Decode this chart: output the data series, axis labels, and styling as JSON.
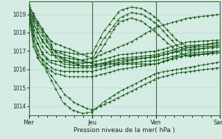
{
  "xlabel": "Pression niveau de la mer( hPa )",
  "bg_color": "#d5ece5",
  "line_color": "#1a5c1a",
  "marker_color": "#1a5c1a",
  "grid_major_color": "#b8d8cc",
  "grid_minor_color": "#cce8de",
  "axis_color": "#336633",
  "ylim": [
    1013.5,
    1019.7
  ],
  "xlim": [
    0,
    168
  ],
  "day_labels": [
    "Mer",
    "Jeu",
    "Ven",
    "Sam"
  ],
  "day_positions": [
    0,
    56,
    112,
    168
  ],
  "series_controls": [
    {
      "x": [
        0,
        8,
        18,
        22,
        56,
        70,
        112,
        140,
        168
      ],
      "y": [
        1019.4,
        1018.5,
        1017.6,
        1017.0,
        1016.3,
        1016.3,
        1016.3,
        1016.8,
        1016.9
      ]
    },
    {
      "x": [
        0,
        8,
        18,
        22,
        45,
        56,
        80,
        112,
        140,
        168
      ],
      "y": [
        1019.3,
        1018.2,
        1017.3,
        1016.8,
        1016.2,
        1016.2,
        1016.5,
        1016.7,
        1017.1,
        1017.2
      ]
    },
    {
      "x": [
        0,
        6,
        14,
        20,
        30,
        40,
        56,
        80,
        112,
        140,
        168
      ],
      "y": [
        1019.5,
        1018.6,
        1017.8,
        1017.2,
        1016.5,
        1016.4,
        1016.4,
        1016.8,
        1017.0,
        1017.5,
        1017.6
      ]
    },
    {
      "x": [
        0,
        6,
        14,
        20,
        30,
        45,
        56,
        80,
        112,
        140,
        168
      ],
      "y": [
        1019.4,
        1018.2,
        1017.4,
        1016.9,
        1016.3,
        1016.2,
        1016.2,
        1016.6,
        1016.8,
        1017.3,
        1017.4
      ]
    },
    {
      "x": [
        0,
        5,
        12,
        18,
        28,
        35,
        56,
        80,
        100,
        112,
        130,
        140,
        168
      ],
      "y": [
        1019.3,
        1017.8,
        1016.8,
        1016.4,
        1016.2,
        1016.1,
        1016.1,
        1016.4,
        1016.6,
        1016.7,
        1017.0,
        1017.2,
        1017.3
      ]
    },
    {
      "x": [
        0,
        5,
        10,
        16,
        22,
        30,
        40,
        56,
        80,
        112,
        140,
        168
      ],
      "y": [
        1019.1,
        1017.5,
        1016.7,
        1016.3,
        1016.0,
        1015.9,
        1015.9,
        1015.9,
        1016.3,
        1016.5,
        1016.9,
        1017.0
      ]
    },
    {
      "x": [
        0,
        4,
        10,
        16,
        22,
        35,
        56,
        80,
        100,
        112,
        130,
        168
      ],
      "y": [
        1019.0,
        1017.2,
        1016.4,
        1016.1,
        1015.8,
        1015.6,
        1015.6,
        1016.0,
        1016.2,
        1016.3,
        1016.7,
        1016.9
      ]
    },
    {
      "x": [
        0,
        4,
        8,
        14,
        18,
        25,
        32,
        40,
        50,
        56,
        80,
        112,
        130,
        168
      ],
      "y": [
        1019.2,
        1017.8,
        1016.8,
        1016.3,
        1015.8,
        1015.2,
        1014.6,
        1014.2,
        1013.9,
        1013.8,
        1014.5,
        1015.5,
        1015.8,
        1016.1
      ]
    },
    {
      "x": [
        0,
        4,
        8,
        14,
        18,
        24,
        30,
        38,
        48,
        56,
        65,
        80,
        112,
        130,
        168
      ],
      "y": [
        1019.1,
        1017.5,
        1016.6,
        1016.1,
        1015.6,
        1014.9,
        1014.2,
        1013.8,
        1013.6,
        1013.7,
        1014.2,
        1014.8,
        1015.8,
        1016.0,
        1016.4
      ]
    },
    {
      "x": [
        0,
        6,
        14,
        20,
        56,
        90,
        112,
        140,
        168
      ],
      "y": [
        1019.5,
        1018.8,
        1018.0,
        1017.5,
        1016.6,
        1017.5,
        1018.3,
        1018.8,
        1019.0
      ]
    },
    {
      "x": [
        0,
        5,
        12,
        18,
        45,
        56,
        65,
        80,
        90,
        100,
        112,
        130,
        140,
        168
      ],
      "y": [
        1019.4,
        1018.4,
        1017.5,
        1017.1,
        1016.8,
        1016.9,
        1018.0,
        1019.2,
        1019.4,
        1019.3,
        1018.8,
        1017.6,
        1017.2,
        1017.5
      ]
    },
    {
      "x": [
        0,
        5,
        12,
        18,
        45,
        56,
        65,
        80,
        90,
        100,
        112,
        130,
        140,
        168
      ],
      "y": [
        1019.3,
        1018.1,
        1017.2,
        1016.8,
        1016.5,
        1016.6,
        1017.6,
        1018.8,
        1019.1,
        1019.0,
        1018.5,
        1017.3,
        1017.0,
        1017.3
      ]
    },
    {
      "x": [
        0,
        5,
        12,
        18,
        45,
        56,
        65,
        75,
        80,
        90,
        100,
        112,
        130,
        140,
        168
      ],
      "y": [
        1019.2,
        1017.8,
        1016.9,
        1016.5,
        1016.3,
        1016.4,
        1017.2,
        1018.2,
        1018.6,
        1018.8,
        1018.6,
        1018.0,
        1017.0,
        1016.7,
        1017.0
      ]
    }
  ]
}
